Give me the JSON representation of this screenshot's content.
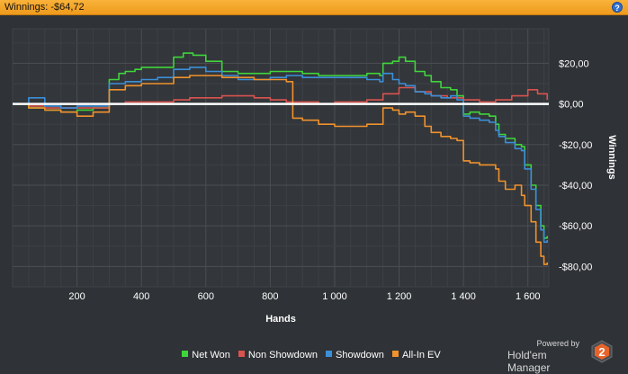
{
  "header": {
    "title": "Winnings: -$64,72",
    "help_glyph": "?"
  },
  "colors": {
    "header_bg": "#f2a32a",
    "background": "#2f3236",
    "net_won": "#3ed53b",
    "non_showdown": "#d9534f",
    "showdown": "#3b8fd9",
    "all_in_ev": "#f0922d",
    "zero_line": "#ffffff"
  },
  "chart_data": {
    "type": "line",
    "xlabel": "Hands",
    "ylabel": "Winnings",
    "xlim": [
      0,
      1665
    ],
    "ylim": [
      -90,
      37
    ],
    "x_ticks": [
      200,
      400,
      600,
      800,
      1000,
      1200,
      1400,
      1600
    ],
    "x_tick_labels": [
      "200",
      "400",
      "600",
      "800",
      "1 000",
      "1 200",
      "1 400",
      "1 600"
    ],
    "y_ticks": [
      20,
      0,
      -20,
      -40,
      -60,
      -80
    ],
    "y_tick_labels": [
      "$20,00",
      "$0,00",
      "-$20,00",
      "-$40,00",
      "-$60,00",
      "-$80,00"
    ],
    "grid": true,
    "legend_position": "bottom",
    "series": [
      {
        "name": "Net Won",
        "color": "#3ed53b",
        "points": [
          [
            0,
            0
          ],
          [
            50,
            -2
          ],
          [
            100,
            -3
          ],
          [
            150,
            -4
          ],
          [
            200,
            -3
          ],
          [
            250,
            -2
          ],
          [
            290,
            -2
          ],
          [
            300,
            12
          ],
          [
            330,
            15
          ],
          [
            350,
            16
          ],
          [
            380,
            17
          ],
          [
            400,
            18
          ],
          [
            450,
            18
          ],
          [
            480,
            18
          ],
          [
            500,
            23
          ],
          [
            530,
            25
          ],
          [
            560,
            24
          ],
          [
            600,
            21
          ],
          [
            650,
            16
          ],
          [
            700,
            15
          ],
          [
            750,
            15
          ],
          [
            800,
            16
          ],
          [
            850,
            16
          ],
          [
            900,
            15
          ],
          [
            950,
            14
          ],
          [
            1000,
            14
          ],
          [
            1050,
            14
          ],
          [
            1100,
            15
          ],
          [
            1140,
            14
          ],
          [
            1150,
            20
          ],
          [
            1180,
            21
          ],
          [
            1200,
            23
          ],
          [
            1220,
            21
          ],
          [
            1250,
            16
          ],
          [
            1280,
            14
          ],
          [
            1300,
            11
          ],
          [
            1330,
            8
          ],
          [
            1360,
            7
          ],
          [
            1380,
            4
          ],
          [
            1400,
            -5
          ],
          [
            1420,
            -4
          ],
          [
            1450,
            -5
          ],
          [
            1480,
            -6
          ],
          [
            1500,
            -10
          ],
          [
            1510,
            -15
          ],
          [
            1530,
            -17
          ],
          [
            1560,
            -20
          ],
          [
            1580,
            -21
          ],
          [
            1590,
            -30
          ],
          [
            1610,
            -40
          ],
          [
            1625,
            -50
          ],
          [
            1640,
            -60
          ],
          [
            1650,
            -66
          ],
          [
            1660,
            -65
          ]
        ]
      },
      {
        "name": "Non Showdown",
        "color": "#d9534f",
        "points": [
          [
            0,
            0
          ],
          [
            50,
            -1
          ],
          [
            100,
            -2
          ],
          [
            150,
            -2
          ],
          [
            200,
            -2
          ],
          [
            250,
            -2
          ],
          [
            300,
            0
          ],
          [
            350,
            1
          ],
          [
            400,
            1
          ],
          [
            450,
            1
          ],
          [
            500,
            2
          ],
          [
            550,
            3
          ],
          [
            600,
            3
          ],
          [
            650,
            4
          ],
          [
            700,
            4
          ],
          [
            750,
            3
          ],
          [
            800,
            2
          ],
          [
            850,
            1
          ],
          [
            900,
            1
          ],
          [
            950,
            0
          ],
          [
            1000,
            1
          ],
          [
            1050,
            1
          ],
          [
            1100,
            2
          ],
          [
            1150,
            5
          ],
          [
            1200,
            8
          ],
          [
            1250,
            6
          ],
          [
            1300,
            4
          ],
          [
            1350,
            3
          ],
          [
            1400,
            2
          ],
          [
            1450,
            1
          ],
          [
            1500,
            2
          ],
          [
            1550,
            4
          ],
          [
            1600,
            7
          ],
          [
            1630,
            5
          ],
          [
            1660,
            2
          ]
        ]
      },
      {
        "name": "Showdown",
        "color": "#3b8fd9",
        "points": [
          [
            0,
            0
          ],
          [
            50,
            3
          ],
          [
            100,
            -1
          ],
          [
            150,
            -2
          ],
          [
            200,
            -1
          ],
          [
            250,
            -1
          ],
          [
            300,
            10
          ],
          [
            350,
            11
          ],
          [
            400,
            12
          ],
          [
            450,
            13
          ],
          [
            500,
            17
          ],
          [
            550,
            18
          ],
          [
            600,
            16
          ],
          [
            650,
            14
          ],
          [
            700,
            12
          ],
          [
            750,
            12
          ],
          [
            800,
            13
          ],
          [
            850,
            14
          ],
          [
            900,
            13
          ],
          [
            950,
            13
          ],
          [
            1000,
            13
          ],
          [
            1050,
            13
          ],
          [
            1100,
            12
          ],
          [
            1140,
            11
          ],
          [
            1150,
            15
          ],
          [
            1180,
            12
          ],
          [
            1200,
            10
          ],
          [
            1220,
            9
          ],
          [
            1250,
            6
          ],
          [
            1280,
            5
          ],
          [
            1300,
            4
          ],
          [
            1330,
            3
          ],
          [
            1360,
            4
          ],
          [
            1380,
            2
          ],
          [
            1400,
            -6
          ],
          [
            1420,
            -7
          ],
          [
            1450,
            -8
          ],
          [
            1480,
            -9
          ],
          [
            1500,
            -13
          ],
          [
            1510,
            -16
          ],
          [
            1530,
            -19
          ],
          [
            1560,
            -22
          ],
          [
            1580,
            -23
          ],
          [
            1590,
            -32
          ],
          [
            1610,
            -42
          ],
          [
            1625,
            -52
          ],
          [
            1640,
            -62
          ],
          [
            1650,
            -68
          ],
          [
            1660,
            -67
          ]
        ]
      },
      {
        "name": "All-In EV",
        "color": "#f0922d",
        "points": [
          [
            0,
            0
          ],
          [
            50,
            -2
          ],
          [
            100,
            -3
          ],
          [
            150,
            -4
          ],
          [
            200,
            -6
          ],
          [
            250,
            -4
          ],
          [
            300,
            7
          ],
          [
            350,
            9
          ],
          [
            400,
            10
          ],
          [
            450,
            10
          ],
          [
            500,
            13
          ],
          [
            550,
            14
          ],
          [
            600,
            14
          ],
          [
            650,
            13
          ],
          [
            700,
            13
          ],
          [
            750,
            12
          ],
          [
            800,
            12
          ],
          [
            850,
            11
          ],
          [
            870,
            -7
          ],
          [
            900,
            -8
          ],
          [
            950,
            -10
          ],
          [
            1000,
            -11
          ],
          [
            1050,
            -11
          ],
          [
            1100,
            -10
          ],
          [
            1150,
            -2
          ],
          [
            1180,
            -3
          ],
          [
            1200,
            -5
          ],
          [
            1220,
            -4
          ],
          [
            1250,
            -6
          ],
          [
            1280,
            -11
          ],
          [
            1300,
            -14
          ],
          [
            1330,
            -16
          ],
          [
            1360,
            -17
          ],
          [
            1380,
            -18
          ],
          [
            1400,
            -28
          ],
          [
            1420,
            -29
          ],
          [
            1450,
            -30
          ],
          [
            1480,
            -30
          ],
          [
            1500,
            -32
          ],
          [
            1510,
            -38
          ],
          [
            1530,
            -42
          ],
          [
            1560,
            -40
          ],
          [
            1580,
            -45
          ],
          [
            1590,
            -50
          ],
          [
            1610,
            -58
          ],
          [
            1625,
            -68
          ],
          [
            1640,
            -75
          ],
          [
            1650,
            -79
          ],
          [
            1660,
            -78
          ]
        ]
      }
    ]
  },
  "legend": {
    "items": [
      {
        "label": "Net Won",
        "color": "#3ed53b"
      },
      {
        "label": "Non Showdown",
        "color": "#d9534f"
      },
      {
        "label": "Showdown",
        "color": "#3b8fd9"
      },
      {
        "label": "All-In EV",
        "color": "#f0922d"
      }
    ]
  },
  "branding": {
    "powered_by": "Powered by",
    "product": "Hold'em Manager",
    "logo_number": "2",
    "logo_color": "#e8632a"
  }
}
